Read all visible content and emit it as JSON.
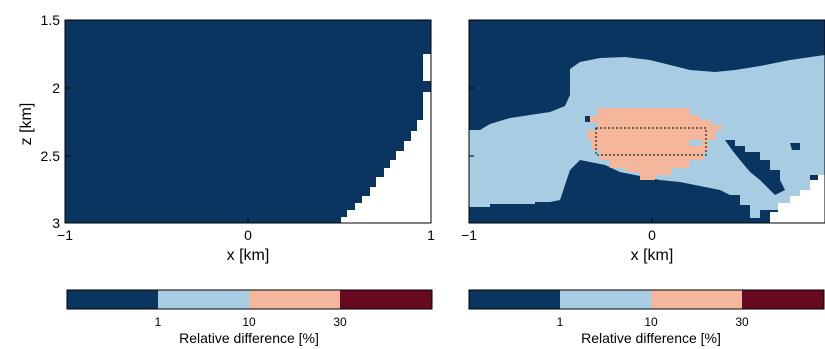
{
  "chart_data": [
    {
      "type": "heatmap",
      "panel": "left",
      "xlabel": "x [km]",
      "ylabel": "z [km]",
      "xlim": [
        -1,
        1
      ],
      "ylim": [
        3,
        1.5
      ],
      "x_ticks": [
        "−1",
        "0",
        "1"
      ],
      "y_ticks": [
        "1.5",
        "2",
        "2.5",
        "3"
      ],
      "regions": [
        {
          "class": "<1%",
          "description": "entire domain except lower-right corner and notch at x≈0.95, z 1.7–2.0"
        },
        {
          "class": "undefined (white)",
          "boundary_x_at_z": [
            [
              1.7,
              0.93
            ],
            [
              2.0,
              0.95
            ],
            [
              2.3,
              0.88
            ],
            [
              2.45,
              0.82
            ],
            [
              2.6,
              0.75
            ],
            [
              2.75,
              0.7
            ],
            [
              2.9,
              0.6
            ],
            [
              3.0,
              0.5
            ]
          ]
        }
      ]
    },
    {
      "type": "heatmap",
      "panel": "right",
      "xlabel": "x [km]",
      "ylabel": "",
      "xlim": [
        -1,
        1
      ],
      "ylim": [
        3,
        1.5
      ],
      "x_ticks": [
        "−1",
        "0"
      ],
      "regions": [
        {
          "class": "<1%",
          "where": "top of domain and lower-left / lower-right corners"
        },
        {
          "class": "1-10%",
          "where": "broad band from x=-1 to x=0.9, z 1.85-2.95"
        },
        {
          "class": "10-30%",
          "where": "central anomaly x -0.35 to 0.4, z 2.15-2.7"
        }
      ],
      "target_box": {
        "x": [
          -0.3,
          0.3
        ],
        "z": [
          2.3,
          2.5
        ]
      }
    }
  ],
  "colorbar": {
    "title": "Relative difference [%]",
    "labels": [
      "1",
      "10",
      "30"
    ],
    "bins": [
      "<1",
      "1-10",
      "10-30",
      ">30"
    ],
    "colors": [
      "#0b3561",
      "#a8cde3",
      "#f5b79c",
      "#670a1f"
    ]
  },
  "colors": {
    "dark_blue": "#0b3561",
    "light_blue": "#a8cde3",
    "salmon": "#f5b79c",
    "dark_red": "#670a1f"
  }
}
